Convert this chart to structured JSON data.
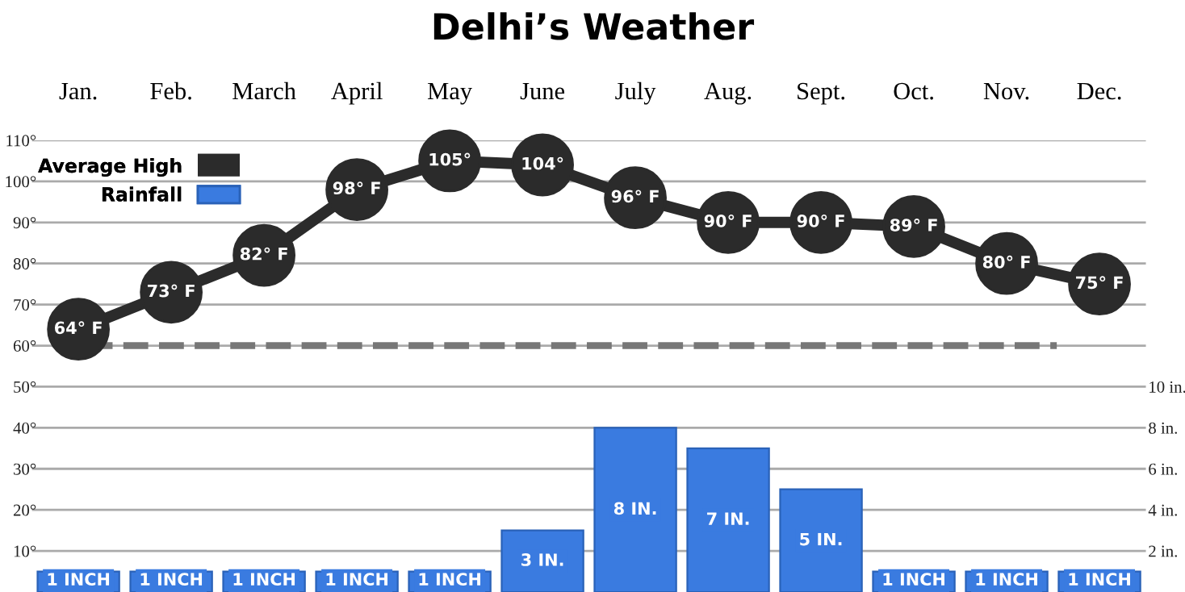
{
  "chart_data": {
    "type": "line",
    "title": "Delhi’s Weather",
    "categories": [
      "Jan.",
      "Feb.",
      "March",
      "April",
      "May",
      "June",
      "July",
      "Aug.",
      "Sept.",
      "Oct.",
      "Nov.",
      "Dec."
    ],
    "series": [
      {
        "name": "Average High",
        "color": "#2b2b2b",
        "values": [
          64,
          73,
          82,
          98,
          105,
          104,
          96,
          90,
          90,
          89,
          80,
          75
        ],
        "value_labels": [
          "64° F",
          "73° F",
          "82° F",
          "98° F",
          "105°",
          "104°",
          "96° F",
          "90° F",
          "90° F",
          "89° F",
          "80° F",
          "75° F"
        ]
      },
      {
        "name": "Rainfall",
        "type": "bar",
        "axis": "y2",
        "color": "#3a7be0",
        "values": [
          1,
          1,
          1,
          1,
          1,
          3,
          8,
          7,
          5,
          1,
          1,
          1
        ],
        "value_labels": [
          "1 INCH",
          "1 INCH",
          "1 INCH",
          "1 INCH",
          "1 INCH",
          "3 IN.",
          "8 IN.",
          "7 IN.",
          "5 IN.",
          "1 INCH",
          "1 INCH",
          "1 INCH"
        ]
      }
    ],
    "ylim": [
      0,
      110
    ],
    "yticks": [
      {
        "value": 10,
        "label": "10°"
      },
      {
        "value": 20,
        "label": "20°"
      },
      {
        "value": 30,
        "label": "30°"
      },
      {
        "value": 40,
        "label": "40°"
      },
      {
        "value": 50,
        "label": "50°"
      },
      {
        "value": 60,
        "label": "60°"
      },
      {
        "value": 70,
        "label": "70°"
      },
      {
        "value": 80,
        "label": "80°"
      },
      {
        "value": 90,
        "label": "90°"
      },
      {
        "value": 100,
        "label": "100°"
      },
      {
        "value": 110,
        "label": "110°"
      }
    ],
    "y2lim": [
      0,
      22
    ],
    "y2ticks": [
      {
        "value": 2,
        "label": "2 in."
      },
      {
        "value": 4,
        "label": "4 in."
      },
      {
        "value": 6,
        "label": "6 in."
      },
      {
        "value": 8,
        "label": "8 in."
      },
      {
        "value": 10,
        "label": "10 in."
      }
    ],
    "ref_lines": [
      {
        "axis": "y",
        "value": 60,
        "color": "#777777",
        "line_style": "dashed"
      }
    ],
    "grid": "y",
    "legend": "top left",
    "marker": "circle",
    "line_style": "solid"
  }
}
